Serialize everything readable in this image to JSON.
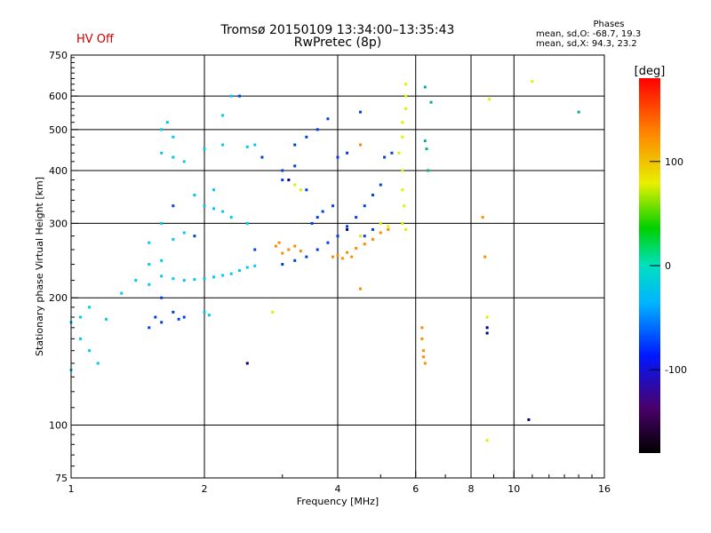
{
  "header": {
    "title_line1": "Tromsø 20150109 13:34:00–13:35:43",
    "title_line2": "RwPretec (8p)",
    "status": "HV Off",
    "stats_title": "Phases",
    "stats_o": "mean, sd,O: -68.7, 19.3",
    "stats_x": "mean, sd,X:  94.3, 23.2"
  },
  "colorbar": {
    "unit": "[deg]",
    "ticks": [
      "100",
      "0",
      "-100"
    ],
    "tick_values": [
      100,
      0,
      -100
    ],
    "range": [
      -180,
      180
    ]
  },
  "chart_data": {
    "type": "scatter",
    "title": "Tromsø 20150109 13:34:00–13:35:43",
    "subtitle": "RwPretec (8p)",
    "xlabel": "Frequency [MHz]",
    "ylabel": "Stationary phase Virtual Height [km]",
    "xscale": "log",
    "yscale": "log",
    "xlim": [
      1,
      16
    ],
    "ylim": [
      75,
      750
    ],
    "xticks": [
      "1",
      "2",
      "4",
      "6",
      "8",
      "10",
      "16"
    ],
    "xtick_values": [
      1,
      2,
      4,
      6,
      8,
      10,
      16
    ],
    "yticks": [
      "75",
      "100",
      "200",
      "300",
      "400",
      "500",
      "600",
      "750"
    ],
    "ytick_values": [
      75,
      100,
      200,
      300,
      400,
      500,
      600,
      750
    ],
    "grid_x": [
      2,
      4,
      6,
      8,
      10
    ],
    "grid_y": [
      100,
      200,
      300,
      400,
      500,
      600
    ],
    "legend_position": "top-right",
    "series": [
      {
        "color": "#00c8f0",
        "points": [
          [
            1.0,
            175
          ],
          [
            1.05,
            180
          ],
          [
            1.1,
            190
          ],
          [
            1.2,
            178
          ],
          [
            1.3,
            205
          ],
          [
            1.4,
            220
          ],
          [
            1.5,
            215
          ],
          [
            1.6,
            225
          ],
          [
            1.7,
            222
          ],
          [
            1.8,
            220
          ],
          [
            1.9,
            221
          ],
          [
            2.0,
            222
          ],
          [
            2.1,
            224
          ],
          [
            2.2,
            226
          ],
          [
            2.3,
            228
          ],
          [
            2.4,
            232
          ],
          [
            2.5,
            236
          ],
          [
            2.6,
            238
          ],
          [
            1.5,
            240
          ],
          [
            1.6,
            245
          ],
          [
            1.5,
            270
          ],
          [
            1.6,
            300
          ],
          [
            1.7,
            275
          ],
          [
            1.8,
            285
          ],
          [
            2.0,
            330
          ],
          [
            2.1,
            325
          ],
          [
            2.2,
            320
          ],
          [
            2.3,
            310
          ],
          [
            2.5,
            300
          ],
          [
            1.6,
            440
          ],
          [
            1.7,
            430
          ],
          [
            1.8,
            420
          ],
          [
            2.0,
            450
          ],
          [
            2.2,
            460
          ],
          [
            2.5,
            455
          ],
          [
            2.6,
            460
          ],
          [
            1.6,
            500
          ],
          [
            1.65,
            520
          ],
          [
            1.7,
            480
          ],
          [
            2.2,
            540
          ],
          [
            2.3,
            600
          ],
          [
            1.05,
            160
          ],
          [
            1.1,
            150
          ],
          [
            1.15,
            140
          ],
          [
            1.0,
            135
          ],
          [
            1.9,
            350
          ],
          [
            2.1,
            360
          ],
          [
            2.0,
            185
          ],
          [
            2.05,
            182
          ]
        ]
      },
      {
        "color": "#0040e0",
        "points": [
          [
            1.5,
            170
          ],
          [
            1.55,
            180
          ],
          [
            1.6,
            200
          ],
          [
            1.7,
            185
          ],
          [
            1.75,
            178
          ],
          [
            1.8,
            180
          ],
          [
            1.6,
            175
          ],
          [
            3.0,
            240
          ],
          [
            3.2,
            245
          ],
          [
            3.4,
            250
          ],
          [
            3.6,
            260
          ],
          [
            3.8,
            270
          ],
          [
            4.0,
            280
          ],
          [
            4.2,
            295
          ],
          [
            4.4,
            310
          ],
          [
            4.6,
            330
          ],
          [
            4.8,
            350
          ],
          [
            5.0,
            370
          ],
          [
            3.5,
            300
          ],
          [
            3.6,
            310
          ],
          [
            3.7,
            320
          ],
          [
            3.9,
            330
          ],
          [
            3.2,
            460
          ],
          [
            3.4,
            480
          ],
          [
            3.6,
            500
          ],
          [
            3.8,
            530
          ],
          [
            4.0,
            430
          ],
          [
            4.2,
            440
          ],
          [
            2.4,
            600
          ],
          [
            2.7,
            430
          ],
          [
            3.0,
            380
          ],
          [
            3.4,
            360
          ],
          [
            4.5,
            550
          ],
          [
            3.0,
            400
          ],
          [
            3.2,
            410
          ],
          [
            2.6,
            260
          ],
          [
            1.7,
            330
          ],
          [
            1.9,
            280
          ],
          [
            5.1,
            430
          ],
          [
            5.3,
            440
          ],
          [
            4.6,
            280
          ],
          [
            4.8,
            290
          ]
        ]
      },
      {
        "color": "#ff8c00",
        "points": [
          [
            3.0,
            255
          ],
          [
            3.1,
            260
          ],
          [
            3.2,
            265
          ],
          [
            3.3,
            258
          ],
          [
            3.9,
            250
          ],
          [
            4.0,
            252
          ],
          [
            4.2,
            256
          ],
          [
            4.4,
            262
          ],
          [
            4.6,
            268
          ],
          [
            4.8,
            275
          ],
          [
            5.0,
            285
          ],
          [
            5.2,
            290
          ],
          [
            4.1,
            248
          ],
          [
            4.3,
            250
          ],
          [
            2.9,
            265
          ],
          [
            2.95,
            270
          ],
          [
            6.2,
            170
          ],
          [
            6.2,
            160
          ],
          [
            6.25,
            150
          ],
          [
            6.25,
            145
          ],
          [
            6.3,
            140
          ],
          [
            4.5,
            210
          ],
          [
            8.5,
            310
          ],
          [
            8.6,
            250
          ],
          [
            4.5,
            460
          ]
        ]
      },
      {
        "color": "#e0f000",
        "points": [
          [
            5.7,
            600
          ],
          [
            5.7,
            560
          ],
          [
            5.6,
            520
          ],
          [
            5.6,
            480
          ],
          [
            5.5,
            440
          ],
          [
            5.6,
            400
          ],
          [
            5.6,
            360
          ],
          [
            5.65,
            330
          ],
          [
            5.6,
            300
          ],
          [
            5.7,
            290
          ],
          [
            5.7,
            640
          ],
          [
            3.2,
            370
          ],
          [
            3.3,
            360
          ],
          [
            5.0,
            300
          ],
          [
            5.2,
            295
          ],
          [
            4.5,
            280
          ],
          [
            8.8,
            590
          ],
          [
            8.7,
            180
          ],
          [
            8.7,
            92
          ],
          [
            11,
            650
          ],
          [
            2.85,
            185
          ]
        ]
      },
      {
        "color": "#000080",
        "points": [
          [
            2.5,
            140
          ],
          [
            4.2,
            290
          ],
          [
            3.1,
            380
          ],
          [
            10.8,
            103
          ],
          [
            8.7,
            165
          ],
          [
            8.7,
            170
          ]
        ]
      },
      {
        "color": "#00b090",
        "points": [
          [
            6.3,
            630
          ],
          [
            6.3,
            470
          ],
          [
            6.5,
            580
          ],
          [
            6.35,
            450
          ],
          [
            14,
            550
          ],
          [
            6.4,
            400
          ]
        ]
      }
    ]
  }
}
